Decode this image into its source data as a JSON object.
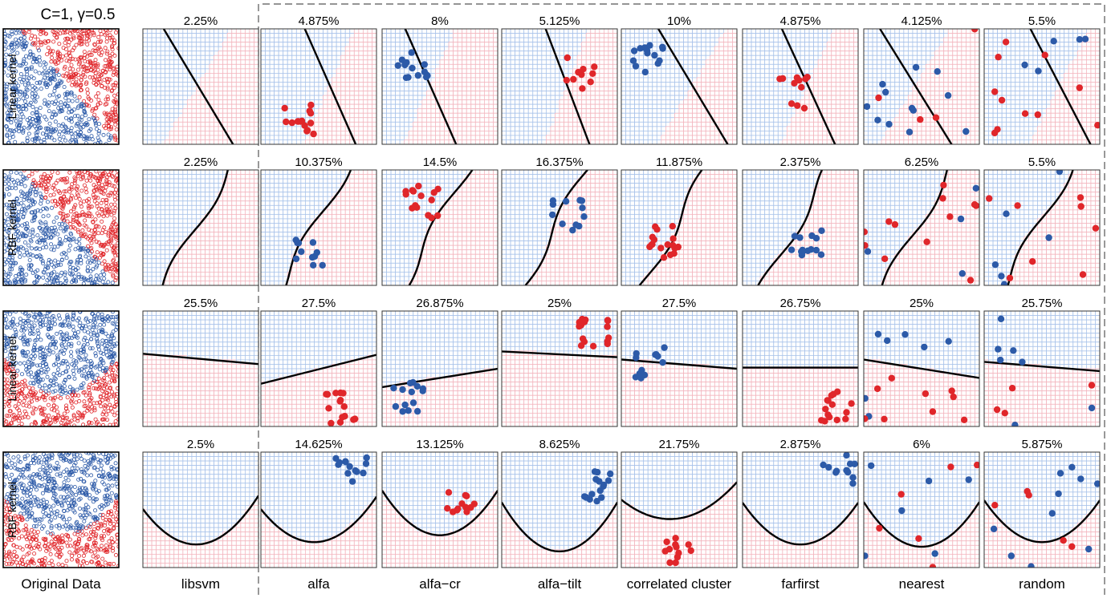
{
  "header": {
    "params_label": "C=1, γ=0.5"
  },
  "columns": [
    "Original Data",
    "libsvm",
    "alfa",
    "alfa−cr",
    "alfa−tilt",
    "correlated cluster",
    "farfirst",
    "nearest",
    "random"
  ],
  "rows": [
    {
      "label": "Linear kernel",
      "dataset": "diagonal",
      "boundary": "line",
      "errors": [
        "2.25%",
        "4.875%",
        "8%",
        "5.125%",
        "10%",
        "4.875%",
        "4.125%",
        "5.5%"
      ]
    },
    {
      "label": "RBF kernel",
      "dataset": "diagonal",
      "boundary": "curve",
      "errors": [
        "2.25%",
        "10.375%",
        "14.5%",
        "16.375%",
        "11.875%",
        "2.375%",
        "6.25%",
        "5.5%"
      ]
    },
    {
      "label": "Linear kernel",
      "dataset": "parabola",
      "boundary": "line",
      "errors": [
        "25.5%",
        "27.5%",
        "26.875%",
        "25%",
        "27.5%",
        "26.75%",
        "25%",
        "25.75%"
      ]
    },
    {
      "label": "RBF kernel",
      "dataset": "parabola",
      "boundary": "u-curve",
      "errors": [
        "2.5%",
        "14.625%",
        "13.125%",
        "8.625%",
        "21.75%",
        "2.875%",
        "6%",
        "5.875%"
      ]
    }
  ],
  "chart_data": {
    "type": "scatter",
    "title": "C=1, γ=0.5",
    "classes": [
      {
        "name": "class-blue",
        "color": "#2c5aa8"
      },
      {
        "name": "class-red",
        "color": "#e0262a"
      }
    ],
    "region_colors": {
      "blue": "#a9c3ea",
      "red": "#f3b6bf"
    },
    "grid": true,
    "error_rates_percent": {
      "categories": [
        "libsvm",
        "alfa",
        "alfa−cr",
        "alfa−tilt",
        "correlated cluster",
        "farfirst",
        "nearest",
        "random"
      ],
      "series": [
        {
          "values": [
            2.25,
            4.875,
            8,
            5.125,
            10,
            4.875,
            4.125,
            5.5
          ]
        },
        {
          "values": [
            2.25,
            10.375,
            14.5,
            16.375,
            11.875,
            2.375,
            6.25,
            5.5
          ]
        },
        {
          "values": [
            25.5,
            27.5,
            26.875,
            25,
            27.5,
            26.75,
            25,
            25.75
          ]
        },
        {
          "values": [
            2.5,
            14.625,
            13.125,
            8.625,
            21.75,
            2.875,
            6,
            5.875
          ]
        }
      ]
    }
  }
}
